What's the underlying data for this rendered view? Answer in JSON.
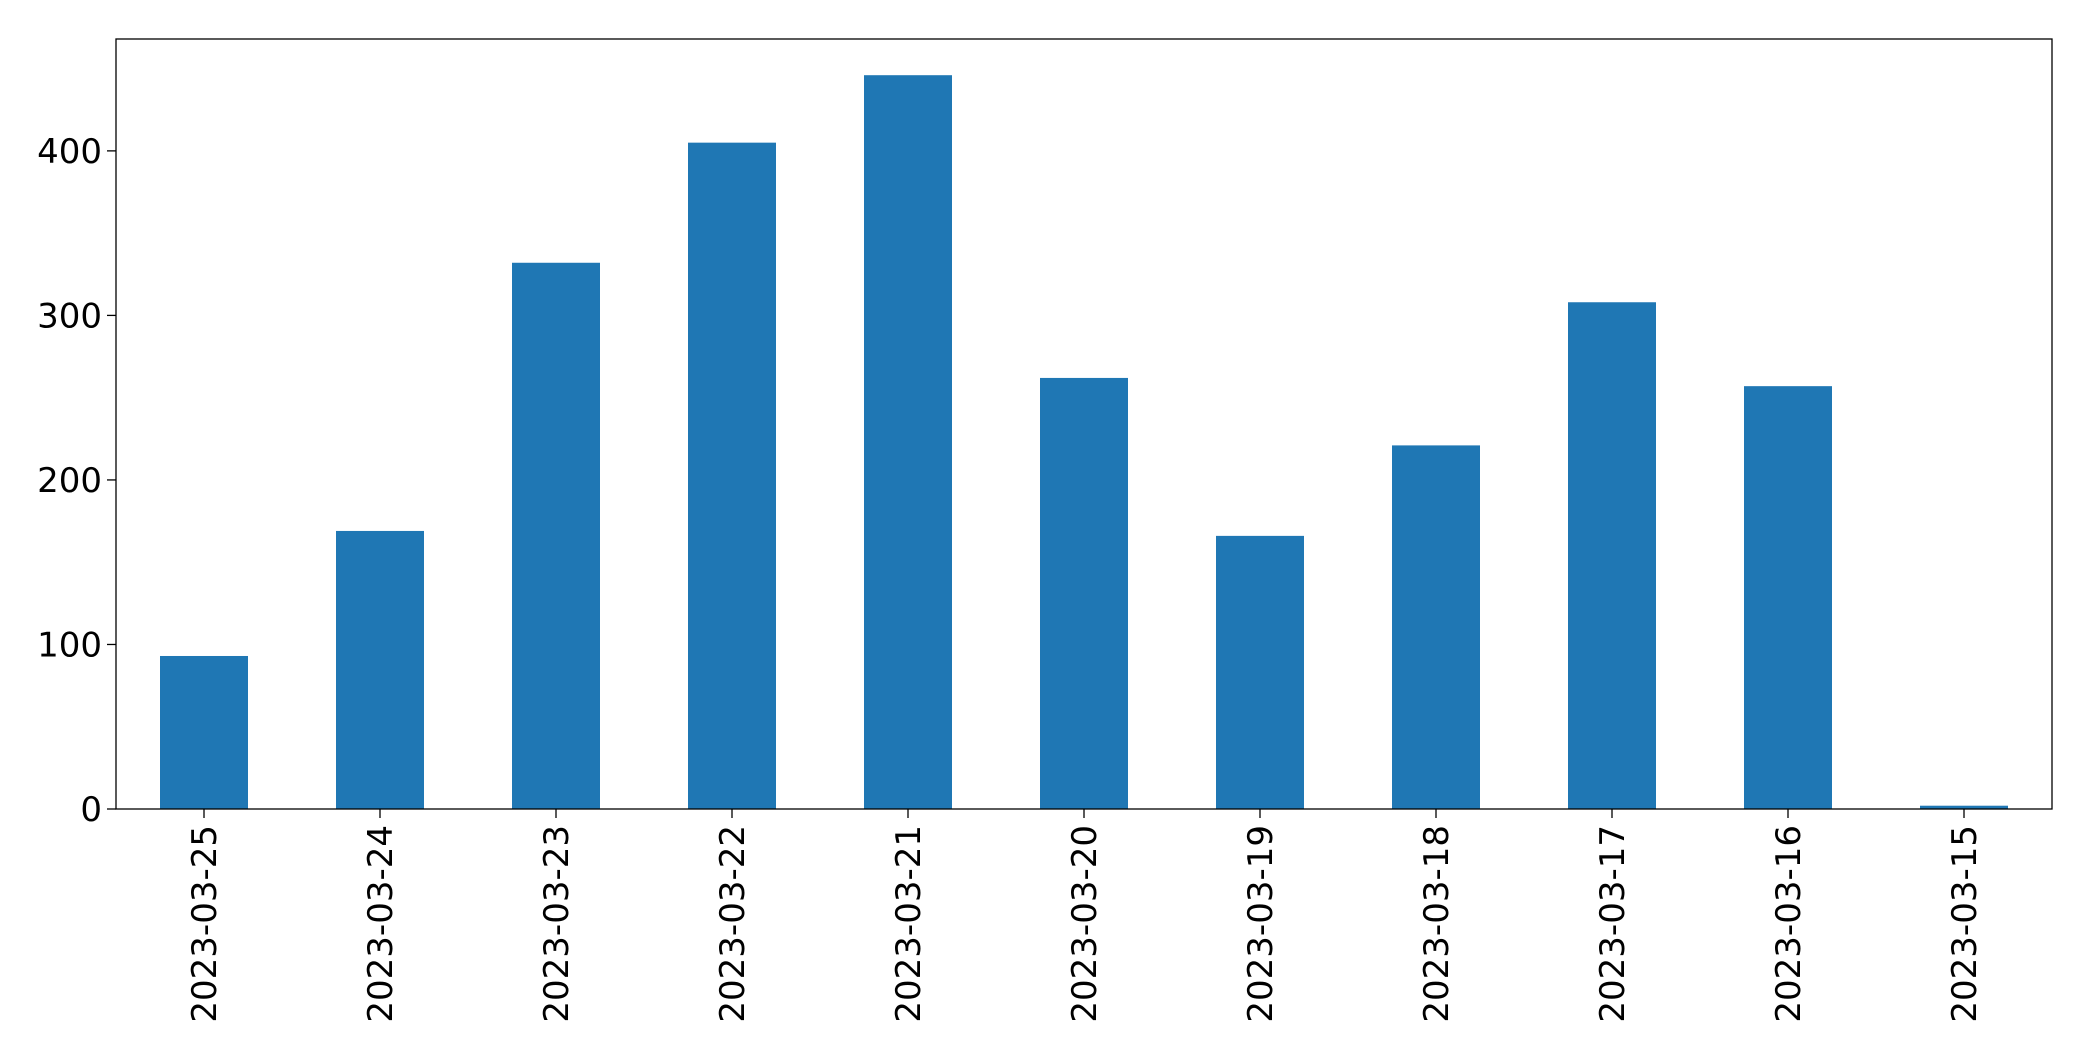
{
  "chart_data": {
    "type": "bar",
    "categories": [
      "2023-03-25",
      "2023-03-24",
      "2023-03-23",
      "2023-03-22",
      "2023-03-21",
      "2023-03-20",
      "2023-03-19",
      "2023-03-18",
      "2023-03-17",
      "2023-03-16",
      "2023-03-15"
    ],
    "values": [
      93,
      169,
      332,
      405,
      446,
      262,
      166,
      221,
      308,
      257,
      2
    ],
    "color": "#1f77b4",
    "ylim": [
      0,
      468
    ],
    "yticks": [
      0,
      100,
      200,
      300,
      400
    ],
    "grid": false
  }
}
